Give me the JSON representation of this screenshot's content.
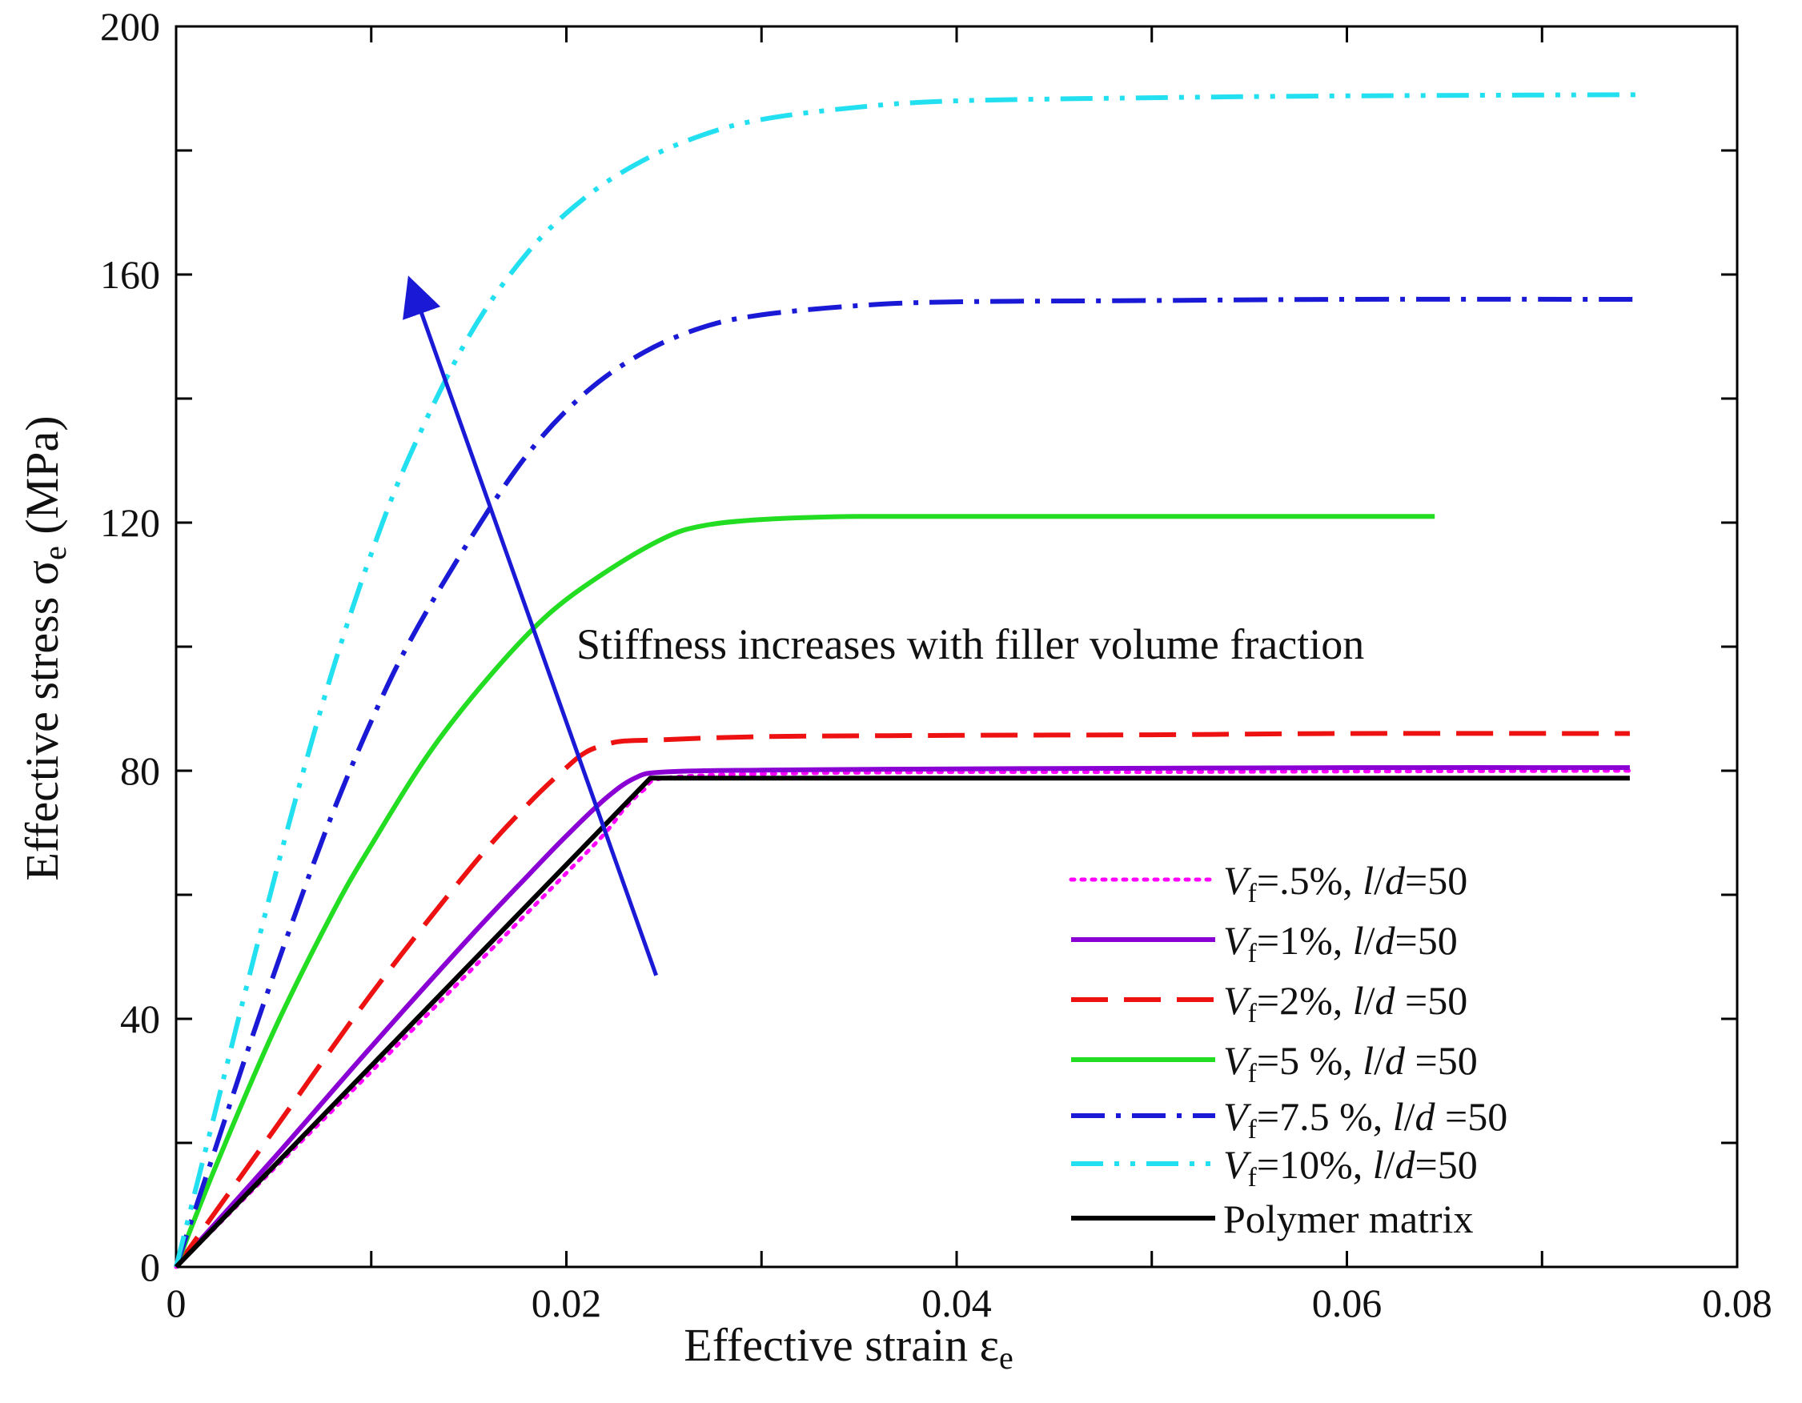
{
  "chart_data": {
    "type": "line",
    "title": "",
    "xlabel": "Effective strain",
    "xlabel_symbol": "ε",
    "xlabel_sub": "e",
    "ylabel": "Effective stress",
    "ylabel_symbol": "σ",
    "ylabel_sub": "e",
    "ylabel_unit": "(MPa)",
    "xlim": [
      0,
      0.08
    ],
    "ylim": [
      0,
      200
    ],
    "x_ticks": [
      0,
      0.02,
      0.04,
      0.06,
      0.08
    ],
    "x_tick_labels": [
      "0",
      "0.02",
      "0.04",
      "0.06",
      "0.08"
    ],
    "y_ticks": [
      0,
      40,
      80,
      120,
      160,
      200
    ],
    "y_tick_labels": [
      "0",
      "40",
      "80",
      "120",
      "160",
      "200"
    ],
    "annotation": "Stiffness increases with filler volume fraction",
    "arrow": {
      "from": [
        0.0246,
        47
      ],
      "to": [
        0.0121,
        158
      ]
    },
    "legend_position": "bottom-right",
    "series": [
      {
        "name": "Vf=.5%, l/d=50",
        "legend": {
          "v": "V",
          "sub": "f",
          "mid": "=.5%, ",
          "l": "l",
          "slash": "/",
          "d": "d",
          "tail": "=50"
        },
        "color": "#ff00ff",
        "dash": "dot",
        "x": [
          0,
          0.005,
          0.01,
          0.015,
          0.02,
          0.022,
          0.023,
          0.024,
          0.025,
          0.03,
          0.04,
          0.05,
          0.06,
          0.0745
        ],
        "y": [
          0,
          15.8,
          31.5,
          47.5,
          63.5,
          70,
          74,
          77,
          78.8,
          79.5,
          79.8,
          79.8,
          79.9,
          80
        ]
      },
      {
        "name": "Vf=1%, l/d=50",
        "legend": {
          "v": "V",
          "sub": "f",
          "mid": "=1%, ",
          "l": "l",
          "slash": "/",
          "d": "d",
          "tail": "=50"
        },
        "color": "#8a00d4",
        "dash": "solid",
        "x": [
          0,
          0.005,
          0.01,
          0.015,
          0.018,
          0.02,
          0.022,
          0.0235,
          0.025,
          0.03,
          0.04,
          0.05,
          0.06,
          0.0745
        ],
        "y": [
          0,
          17.5,
          35.5,
          53,
          63,
          69.5,
          75.5,
          78.8,
          79.8,
          80.1,
          80.3,
          80.4,
          80.5,
          80.5
        ]
      },
      {
        "name": "Vf=2%, l/d =50",
        "legend": {
          "v": "V",
          "sub": "f",
          "mid": "=2%, ",
          "l": "l",
          "slash": "/",
          "d": "d",
          "tail": " =50"
        },
        "color": "#ee1111",
        "dash": "dash",
        "x": [
          0,
          0.005,
          0.01,
          0.015,
          0.018,
          0.02,
          0.021,
          0.022,
          0.023,
          0.025,
          0.03,
          0.04,
          0.05,
          0.06,
          0.0745
        ],
        "y": [
          0,
          22,
          44,
          64,
          74.5,
          80.5,
          83,
          84.2,
          84.8,
          85,
          85.5,
          85.7,
          85.8,
          86,
          86
        ]
      },
      {
        "name": "Vf=5 %, l/d =50",
        "legend": {
          "v": "V",
          "sub": "f",
          "mid": "=5 %, ",
          "l": "l",
          "slash": "/",
          "d": "d",
          "tail": " =50"
        },
        "color": "#22dd22",
        "dash": "solid",
        "x": [
          0,
          0.002,
          0.005,
          0.008,
          0.01,
          0.013,
          0.016,
          0.019,
          0.022,
          0.025,
          0.027,
          0.03,
          0.035,
          0.045,
          0.0645
        ],
        "y": [
          0,
          16,
          38,
          57,
          68,
          83,
          95,
          105,
          112,
          117.5,
          119.5,
          120.5,
          121,
          121,
          121
        ]
      },
      {
        "name": "Vf=7.5 %, l/d =50",
        "legend": {
          "v": "V",
          "sub": "f",
          "mid": "=7.5 %, ",
          "l": "l",
          "slash": "/",
          "d": "d",
          "tail": " =50"
        },
        "color": "#1a1ad6",
        "dash": "dashdot",
        "x": [
          0,
          0.002,
          0.004,
          0.006,
          0.008,
          0.01,
          0.012,
          0.015,
          0.018,
          0.021,
          0.024,
          0.027,
          0.03,
          0.035,
          0.04,
          0.05,
          0.06,
          0.075
        ],
        "y": [
          0,
          19,
          38,
          56,
          73,
          88,
          101,
          117,
          131,
          141,
          147.5,
          151.5,
          153.5,
          155,
          155.6,
          155.8,
          156,
          156
        ]
      },
      {
        "name": "Vf=10%, l/d=50",
        "legend": {
          "v": "V",
          "sub": "f",
          "mid": "=10%, ",
          "l": "l",
          "slash": "/",
          "d": "d",
          "tail": "=50"
        },
        "color": "#22e0f0",
        "dash": "dashdotdot",
        "x": [
          0,
          0.002,
          0.004,
          0.006,
          0.008,
          0.01,
          0.012,
          0.015,
          0.018,
          0.021,
          0.024,
          0.027,
          0.03,
          0.035,
          0.04,
          0.05,
          0.06,
          0.075
        ],
        "y": [
          0,
          25,
          50,
          74,
          96,
          115,
          131,
          150,
          163.5,
          172.5,
          178.5,
          182.5,
          185,
          187,
          188,
          188.5,
          188.8,
          189
        ]
      },
      {
        "name": "Polymer matrix",
        "legend": {
          "text": "Polymer matrix"
        },
        "color": "#000000",
        "dash": "solid",
        "x": [
          0,
          0.0243,
          0.0745
        ],
        "y": [
          0,
          78.8,
          78.8
        ]
      }
    ]
  }
}
